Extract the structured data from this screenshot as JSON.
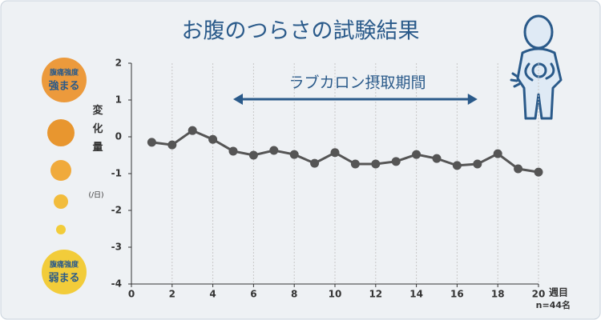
{
  "chart_data": {
    "type": "line",
    "title": "お腹のつらさの試験結果",
    "y_label": "変化量",
    "y_unit": "(/日)",
    "x_unit": "週目",
    "sample_note": "n=44名",
    "legend_top": [
      "腹痛強度",
      "強まる"
    ],
    "legend_bottom": [
      "腹痛強度",
      "弱まる"
    ],
    "period": {
      "label": "ラブカロン摂取期間",
      "start": 5,
      "end": 17
    },
    "x": [
      1,
      2,
      3,
      4,
      5,
      6,
      7,
      8,
      9,
      10,
      11,
      12,
      13,
      14,
      15,
      16,
      17,
      18,
      19,
      20
    ],
    "series": [
      {
        "color": "#555555",
        "values": [
          -0.15,
          -0.22,
          0.17,
          -0.07,
          -0.39,
          -0.5,
          -0.37,
          -0.48,
          -0.72,
          -0.43,
          -0.74,
          -0.74,
          -0.67,
          -0.48,
          -0.59,
          -0.78,
          -0.74,
          -0.46,
          -0.87,
          -0.96
        ]
      }
    ],
    "xlim": [
      0,
      20
    ],
    "xticks": [
      0,
      2,
      4,
      6,
      8,
      10,
      12,
      14,
      16,
      18,
      20
    ],
    "ylim": [
      -4,
      2
    ],
    "yticks": [
      2,
      1,
      0,
      -1,
      -2,
      -3,
      -4
    ],
    "grid": true
  }
}
